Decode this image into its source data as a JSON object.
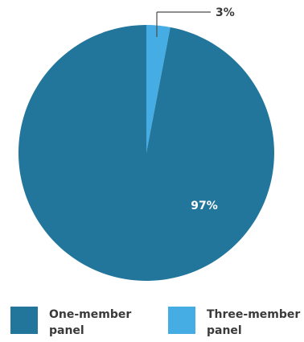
{
  "chart_data": {
    "type": "pie",
    "series": [
      {
        "values": [
          97,
          3
        ]
      }
    ],
    "categories": [
      "One-member panel",
      "Three-member panel"
    ],
    "data_labels": [
      "97%",
      "3%"
    ],
    "colors": [
      "#22769c",
      "#45ade3"
    ],
    "legend_position": "bottom"
  }
}
